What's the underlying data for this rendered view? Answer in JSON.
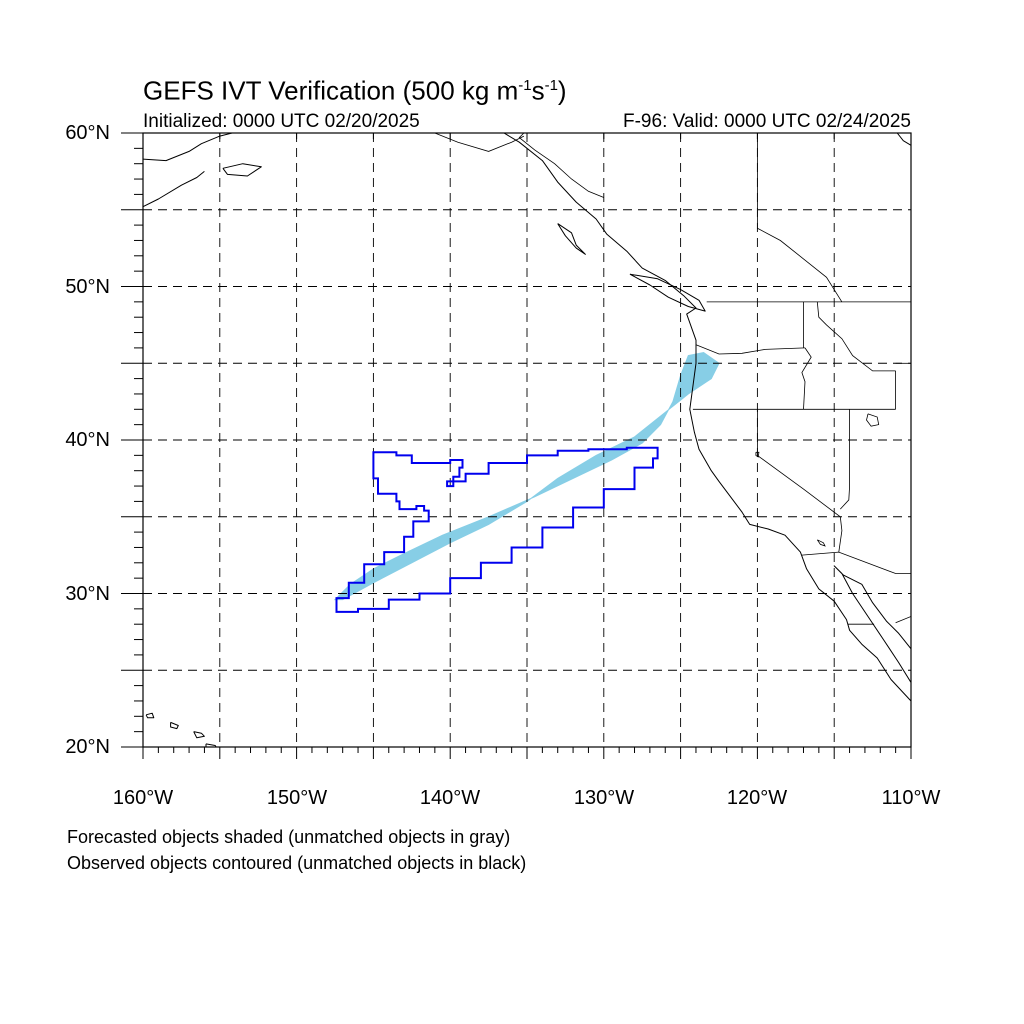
{
  "title": {
    "prefix": "GEFS IVT Verification (500 kg m",
    "exp1": "-1",
    "mid": "s",
    "exp2": "-1",
    "suffix": ")"
  },
  "initialized": "Initialized: 0000 UTC 02/20/2025",
  "valid": "F-96: Valid: 0000 UTC 02/24/2025",
  "notes": {
    "forecast": "Forecasted objects shaded (unmatched objects in gray)",
    "observed": "Observed objects contoured (unmatched objects in black)"
  },
  "map": {
    "lon_range": [
      -160,
      -110
    ],
    "lat_range": [
      20,
      60
    ],
    "grid_lons": [
      -155,
      -150,
      -145,
      -140,
      -135,
      -130,
      -125,
      -120,
      -115
    ],
    "grid_lats": [
      25,
      30,
      35,
      40,
      45,
      50,
      55
    ],
    "lat_labels": [
      "60°N",
      "50°N",
      "40°N",
      "30°N",
      "20°N"
    ],
    "lon_labels": [
      "160°W",
      "150°W",
      "140°W",
      "130°W",
      "120°W",
      "110°W"
    ],
    "colors": {
      "forecast_fill": "#87CEE6",
      "observed_contour": "#0000EE",
      "coast": "#000000",
      "grid": "#000000"
    }
  },
  "forecast_object": {
    "label": "forecast matched object",
    "outline": [
      [
        -147.5,
        29.6
      ],
      [
        -146.5,
        30.6
      ],
      [
        -145,
        31.6
      ],
      [
        -143,
        32.6
      ],
      [
        -140.5,
        33.8
      ],
      [
        -137.5,
        35.0
      ],
      [
        -134.5,
        36.3
      ],
      [
        -132,
        37.5
      ],
      [
        -129.5,
        38.7
      ],
      [
        -127.5,
        39.8
      ],
      [
        -126.3,
        41.0
      ],
      [
        -125.5,
        42.5
      ],
      [
        -125,
        44.2
      ],
      [
        -124.5,
        45.5
      ],
      [
        -123.5,
        45.7
      ],
      [
        -122.5,
        45.0
      ],
      [
        -123,
        44
      ],
      [
        -124.5,
        43
      ],
      [
        -126,
        41.8
      ],
      [
        -128,
        40.2
      ],
      [
        -130.5,
        39.0
      ],
      [
        -133,
        37.5
      ],
      [
        -135,
        36.0
      ],
      [
        -137.5,
        34.5
      ],
      [
        -140,
        33.3
      ],
      [
        -142.5,
        32.0
      ],
      [
        -145,
        30.7
      ],
      [
        -147,
        29.6
      ]
    ]
  },
  "observed_object": {
    "label": "observed matched object",
    "outline": [
      [
        -147.4,
        28.8
      ],
      [
        -146,
        28.8
      ],
      [
        -146,
        29.0
      ],
      [
        -144,
        29.6
      ],
      [
        -142,
        30.0
      ],
      [
        -140,
        31.0
      ],
      [
        -138,
        32.0
      ],
      [
        -136,
        33.0
      ],
      [
        -134,
        34.3
      ],
      [
        -132,
        35.6
      ],
      [
        -130,
        36.8
      ],
      [
        -128,
        38.2
      ],
      [
        -126.8,
        38.8
      ],
      [
        -126.5,
        39.5
      ],
      [
        -128.5,
        39.4
      ],
      [
        -131,
        39.3
      ],
      [
        -133,
        39.0
      ],
      [
        -135,
        38.5
      ],
      [
        -137.5,
        37.8
      ],
      [
        -139,
        37.3
      ],
      [
        -140.2,
        37.0
      ],
      [
        -139.8,
        37.6
      ],
      [
        -139.4,
        38.2
      ],
      [
        -139.2,
        38.7
      ],
      [
        -140,
        38.5
      ],
      [
        -141.5,
        38.5
      ],
      [
        -142.5,
        39.0
      ],
      [
        -143.5,
        39.2
      ],
      [
        -145,
        39.1
      ],
      [
        -145,
        37.5
      ],
      [
        -144.7,
        36.5
      ],
      [
        -143.5,
        36.0
      ],
      [
        -143.3,
        35.5
      ],
      [
        -142.5,
        35.5
      ],
      [
        -142.2,
        35.7
      ],
      [
        -141.7,
        35.4
      ],
      [
        -141.4,
        34.7
      ],
      [
        -142.4,
        33.7
      ],
      [
        -143,
        32.7
      ],
      [
        -144.3,
        31.9
      ],
      [
        -145.6,
        30.7
      ],
      [
        -146.6,
        29.7
      ],
      [
        -147.4,
        29.0
      ]
    ]
  },
  "coastlines": [
    {
      "name": "north-america-west-coast",
      "points": [
        [
          -136.5,
          60
        ],
        [
          -135.5,
          59.4
        ],
        [
          -134,
          58.2
        ],
        [
          -133,
          56.8
        ],
        [
          -131.8,
          55.5
        ],
        [
          -130.5,
          54.4
        ],
        [
          -129.8,
          53.4
        ],
        [
          -128.5,
          52.3
        ],
        [
          -127.5,
          51.2
        ],
        [
          -126,
          50.4
        ],
        [
          -124.8,
          49.4
        ],
        [
          -124,
          48.6
        ],
        [
          -124.6,
          48.2
        ],
        [
          -124,
          46.5
        ],
        [
          -124,
          45
        ],
        [
          -124.2,
          43.5
        ],
        [
          -124.4,
          42
        ],
        [
          -124.1,
          40.5
        ],
        [
          -123.8,
          39.4
        ],
        [
          -123,
          38
        ],
        [
          -122.5,
          37.3
        ],
        [
          -121.9,
          36.5
        ],
        [
          -121,
          35.3
        ],
        [
          -120.5,
          34.5
        ],
        [
          -119.3,
          34.2
        ],
        [
          -118.2,
          33.8
        ],
        [
          -117.2,
          32.7
        ],
        [
          -116.8,
          31.6
        ],
        [
          -116,
          30.3
        ],
        [
          -115,
          29.5
        ],
        [
          -114.2,
          28.3
        ],
        [
          -114,
          27.6
        ],
        [
          -113.2,
          26.7
        ],
        [
          -112.2,
          25.8
        ],
        [
          -111.3,
          24.4
        ],
        [
          -110,
          23
        ]
      ]
    },
    {
      "name": "baja-east-coast",
      "points": [
        [
          -110,
          24.2
        ],
        [
          -110.8,
          25.5
        ],
        [
          -111.8,
          27
        ],
        [
          -112.8,
          28.5
        ],
        [
          -113.8,
          30
        ],
        [
          -114.5,
          31.3
        ],
        [
          -115,
          31.8
        ],
        [
          -114.4,
          31.2
        ],
        [
          -113.2,
          30.6
        ],
        [
          -112.5,
          29.4
        ],
        [
          -111.6,
          28.2
        ],
        [
          -110.8,
          27.4
        ],
        [
          -110,
          26.4
        ]
      ]
    },
    {
      "name": "vancouver-island",
      "points": [
        [
          -128.3,
          50.8
        ],
        [
          -127,
          50.1
        ],
        [
          -125.8,
          49.3
        ],
        [
          -124.5,
          48.7
        ],
        [
          -123.4,
          48.4
        ],
        [
          -123.8,
          49.1
        ],
        [
          -125,
          49.8
        ],
        [
          -126.5,
          50.5
        ],
        [
          -128.3,
          50.8
        ]
      ]
    },
    {
      "name": "haida-gwaii",
      "points": [
        [
          -133,
          54.1
        ],
        [
          -132.1,
          53.5
        ],
        [
          -131.8,
          52.7
        ],
        [
          -131.2,
          52.1
        ],
        [
          -131.8,
          52.5
        ],
        [
          -132.5,
          53.3
        ],
        [
          -133,
          54.1
        ]
      ]
    },
    {
      "name": "kodiak-island",
      "points": [
        [
          -154.8,
          57.7
        ],
        [
          -153.5,
          58.0
        ],
        [
          -152.3,
          57.8
        ],
        [
          -153.2,
          57.2
        ],
        [
          -154.5,
          57.3
        ],
        [
          -154.8,
          57.7
        ]
      ]
    },
    {
      "name": "alaska-peninsula",
      "points": [
        [
          -160,
          58.3
        ],
        [
          -158.5,
          58.2
        ],
        [
          -157,
          58.8
        ],
        [
          -156.2,
          59.3
        ],
        [
          -155,
          59.8
        ],
        [
          -154.2,
          60
        ]
      ]
    },
    {
      "name": "alaska-peninsula-south",
      "points": [
        [
          -160,
          55.2
        ],
        [
          -159,
          55.7
        ],
        [
          -157.5,
          56.6
        ],
        [
          -156.5,
          57.1
        ],
        [
          -156,
          57.5
        ]
      ]
    },
    {
      "name": "hawaii-kauai",
      "points": [
        [
          -159.8,
          22.1
        ],
        [
          -159.4,
          22.2
        ],
        [
          -159.3,
          21.9
        ],
        [
          -159.7,
          21.9
        ],
        [
          -159.8,
          22.1
        ]
      ]
    },
    {
      "name": "hawaii-oahu",
      "points": [
        [
          -158.2,
          21.6
        ],
        [
          -157.7,
          21.4
        ],
        [
          -157.8,
          21.2
        ],
        [
          -158.2,
          21.3
        ],
        [
          -158.2,
          21.6
        ]
      ]
    },
    {
      "name": "hawaii-maui",
      "points": [
        [
          -156.7,
          21.0
        ],
        [
          -156.2,
          20.9
        ],
        [
          -156.0,
          20.7
        ],
        [
          -156.5,
          20.6
        ],
        [
          -156.7,
          21.0
        ]
      ]
    },
    {
      "name": "hawaii-big-island",
      "points": [
        [
          -155.9,
          20.2
        ],
        [
          -155.3,
          20.1
        ],
        [
          -155,
          19.6
        ],
        [
          -155.6,
          19.1
        ],
        [
          -155.9,
          19.6
        ],
        [
          -155.9,
          20.2
        ]
      ]
    },
    {
      "name": "hudson-bay-edge",
      "points": [
        [
          -110,
          59.2
        ],
        [
          -110.5,
          59.5
        ],
        [
          -110.9,
          60
        ]
      ]
    }
  ],
  "borders": [
    {
      "name": "alaska-canada",
      "points": [
        [
          -141,
          60
        ],
        [
          -139.5,
          59.4
        ],
        [
          -137.5,
          58.8
        ],
        [
          -136,
          59.4
        ],
        [
          -135.2,
          59.8
        ]
      ]
    },
    {
      "name": "bc-yukon",
      "points": [
        [
          -135.2,
          60
        ],
        [
          -135.5,
          59.7
        ],
        [
          -134.5,
          58.9
        ],
        [
          -133.2,
          58.0
        ],
        [
          -132.1,
          57.0
        ],
        [
          -131,
          56.2
        ],
        [
          -130,
          55.8
        ]
      ]
    },
    {
      "name": "us-canada-49",
      "points": [
        [
          -123.3,
          49
        ],
        [
          -110,
          49
        ]
      ]
    },
    {
      "name": "bc-alberta",
      "points": [
        [
          -120,
          60
        ],
        [
          -120,
          53.8
        ],
        [
          -118.5,
          53
        ],
        [
          -117,
          51.8
        ],
        [
          -115.5,
          50.6
        ],
        [
          -114.5,
          49
        ]
      ]
    },
    {
      "name": "wa-or",
      "points": [
        [
          -124,
          46.2
        ],
        [
          -122.5,
          45.6
        ],
        [
          -121,
          45.65
        ],
        [
          -119.5,
          45.9
        ],
        [
          -116.9,
          46
        ]
      ]
    },
    {
      "name": "wa-id",
      "points": [
        [
          -117,
          49
        ],
        [
          -117,
          46
        ]
      ]
    },
    {
      "name": "or-id",
      "points": [
        [
          -116.9,
          46
        ],
        [
          -116.5,
          45.4
        ],
        [
          -117.1,
          44.4
        ],
        [
          -116.9,
          43.8
        ],
        [
          -117,
          42
        ]
      ]
    },
    {
      "name": "ca-or-nv-id",
      "points": [
        [
          -124.2,
          42
        ],
        [
          -111,
          42
        ]
      ]
    },
    {
      "name": "ca-nv",
      "points": [
        [
          -120,
          42
        ],
        [
          -120,
          39
        ],
        [
          -117,
          36.8
        ],
        [
          -114.6,
          35
        ]
      ]
    },
    {
      "name": "nv-ut-az",
      "points": [
        [
          -114,
          42
        ],
        [
          -114,
          37
        ],
        [
          -114.05,
          36.1
        ],
        [
          -114.6,
          35.5
        ]
      ]
    },
    {
      "name": "az-ca",
      "points": [
        [
          -114.6,
          35
        ],
        [
          -114.5,
          34.1
        ],
        [
          -114.7,
          32.7
        ]
      ]
    },
    {
      "name": "us-mexico",
      "points": [
        [
          -117.1,
          32.5
        ],
        [
          -114.7,
          32.7
        ],
        [
          -111,
          31.3
        ],
        [
          -108.2,
          31.3
        ]
      ]
    },
    {
      "name": "id-mt",
      "points": [
        [
          -116.1,
          49
        ],
        [
          -116,
          48
        ],
        [
          -115.5,
          47.5
        ],
        [
          -114.5,
          46.6
        ],
        [
          -113.8,
          45.5
        ],
        [
          -112.5,
          44.5
        ],
        [
          -111,
          44.5
        ]
      ]
    },
    {
      "name": "wy-id",
      "points": [
        [
          -111,
          44.5
        ],
        [
          -111,
          42
        ]
      ]
    },
    {
      "name": "mt-wy",
      "points": [
        [
          -111,
          45
        ],
        [
          -110,
          45
        ]
      ]
    },
    {
      "name": "sonora-chihuahua",
      "points": [
        [
          -110,
          28.5
        ],
        [
          -111,
          28.1
        ]
      ]
    },
    {
      "name": "baja-states",
      "points": [
        [
          -114.1,
          28
        ],
        [
          -113,
          28
        ],
        [
          -112.4,
          28
        ]
      ]
    }
  ],
  "lakes": [
    {
      "name": "great-salt-lake",
      "points": [
        [
          -112.8,
          41.7
        ],
        [
          -112.2,
          41.5
        ],
        [
          -112.1,
          41
        ],
        [
          -112.6,
          40.9
        ],
        [
          -112.9,
          41.3
        ],
        [
          -112.8,
          41.7
        ]
      ]
    },
    {
      "name": "lake-tahoe",
      "points": [
        [
          -120.1,
          39.2
        ],
        [
          -119.9,
          39.2
        ],
        [
          -119.95,
          38.9
        ],
        [
          -120.1,
          39.0
        ],
        [
          -120.1,
          39.2
        ]
      ]
    },
    {
      "name": "salton-sea",
      "points": [
        [
          -116.1,
          33.5
        ],
        [
          -115.7,
          33.3
        ],
        [
          -115.6,
          33.1
        ],
        [
          -115.9,
          33.2
        ],
        [
          -116.1,
          33.5
        ]
      ]
    }
  ]
}
